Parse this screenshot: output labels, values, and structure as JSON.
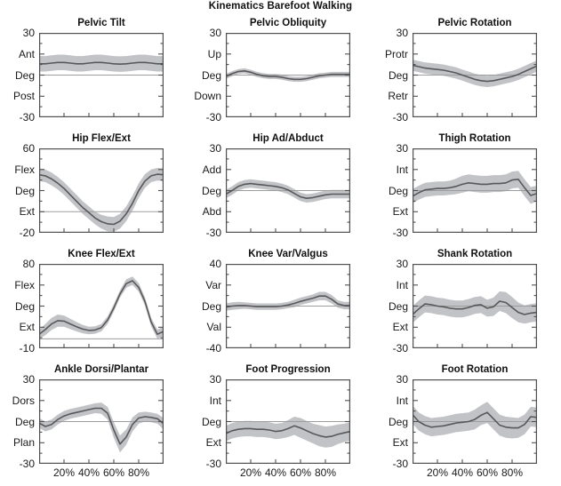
{
  "chart_data": {
    "type": "line",
    "suptitle": "Kinematics Barefoot Walking",
    "description_visible": "4x3 grid of gait kinematic curves, mean line with gray standard-deviation band, horizontal zero reference line in each plot",
    "legend": "none",
    "grid_lines": "off",
    "x": [
      0,
      5,
      10,
      15,
      20,
      25,
      30,
      35,
      40,
      45,
      50,
      55,
      60,
      65,
      70,
      75,
      80,
      85,
      90,
      95,
      100
    ],
    "x_axis": {
      "tick_values": [
        20,
        40,
        60,
        80
      ],
      "tick_labels": [
        "20%",
        "40%",
        "60%",
        "80%"
      ],
      "labels_on_bottom_row_only": true
    },
    "colors": {
      "band": "#c2c3c6",
      "mean_line": "#58585a",
      "zero_line": "#9d9d9d",
      "axis": "#4f5052",
      "text": "#111111",
      "background": "#ffffff"
    },
    "subplots": [
      {
        "title": "Pelvic Tilt",
        "ylim": [
          -30,
          30
        ],
        "yticks": [
          30,
          15,
          0,
          -15,
          -30
        ],
        "ytick_labels": [
          "30",
          "Ant",
          "Deg",
          "Post",
          "-30"
        ],
        "zero_reference_line": 0,
        "mean": [
          8,
          8,
          8.5,
          9,
          9,
          8.5,
          8,
          8,
          8.5,
          9,
          9,
          8.5,
          8,
          7.8,
          8,
          8.5,
          9,
          9,
          8.5,
          8,
          8
        ],
        "band": [
          5.5,
          5.5,
          5.5,
          5.5,
          5.5,
          5.5,
          5.5,
          5.5,
          5.5,
          5.5,
          5.5,
          5.5,
          5.5,
          5.5,
          5.5,
          5.5,
          5.5,
          5.5,
          5.5,
          5.5,
          5.5
        ]
      },
      {
        "title": "Pelvic Obliquity",
        "ylim": [
          -30,
          30
        ],
        "yticks": [
          30,
          15,
          0,
          -15,
          -30
        ],
        "ytick_labels": [
          "30",
          "Up",
          "Deg",
          "Down",
          "-30"
        ],
        "zero_reference_line": 0,
        "mean": [
          -1,
          1,
          2.5,
          3,
          2,
          0.5,
          -0.5,
          -1,
          -1,
          -1.5,
          -2.5,
          -3,
          -3,
          -2.5,
          -1.5,
          -0.5,
          0,
          0.5,
          0.5,
          0.5,
          0.5
        ],
        "band": [
          1.8,
          1.8,
          1.8,
          1.8,
          1.8,
          1.8,
          1.8,
          1.8,
          1.8,
          1.8,
          1.8,
          1.8,
          1.8,
          1.8,
          1.8,
          1.8,
          1.8,
          1.8,
          1.8,
          1.8,
          1.8
        ]
      },
      {
        "title": "Pelvic Rotation",
        "ylim": [
          -30,
          30
        ],
        "yticks": [
          30,
          15,
          0,
          -15,
          -30
        ],
        "ytick_labels": [
          "30",
          "Protr",
          "Deg",
          "Retr",
          "-30"
        ],
        "zero_reference_line": 0,
        "mean": [
          7,
          6,
          5,
          4.5,
          4,
          3.5,
          2.5,
          1.5,
          0,
          -1.5,
          -3,
          -4,
          -4.5,
          -4,
          -3,
          -2,
          -1,
          0.5,
          2.5,
          4.5,
          6.5
        ],
        "band": [
          4,
          4,
          4,
          4,
          4,
          4,
          4,
          4,
          4,
          4,
          4,
          4,
          4,
          4,
          4,
          4,
          4,
          4,
          4,
          4,
          4
        ]
      },
      {
        "title": "Hip Flex/Ext",
        "ylim": [
          -20,
          60
        ],
        "yticks": [
          60,
          40,
          20,
          0,
          -20
        ],
        "ytick_labels": [
          "60",
          "Flex",
          "Deg",
          "Ext",
          "-20"
        ],
        "zero_reference_line": 0,
        "mean": [
          35,
          34,
          31,
          27,
          22,
          16,
          10,
          4,
          -1,
          -6,
          -9.5,
          -11.5,
          -12,
          -9,
          -2,
          8,
          20,
          29,
          34,
          35.5,
          35
        ],
        "band": [
          6,
          6,
          6,
          6,
          6,
          6,
          6,
          6,
          6,
          6,
          6.5,
          7,
          7,
          7,
          7,
          7,
          7,
          6.5,
          6,
          6,
          6
        ]
      },
      {
        "title": "Hip Ad/Abduct",
        "ylim": [
          -30,
          30
        ],
        "yticks": [
          30,
          15,
          0,
          -15,
          -30
        ],
        "ytick_labels": [
          "30",
          "Add",
          "Deg",
          "Abd",
          "-30"
        ],
        "zero_reference_line": 0,
        "mean": [
          -2.5,
          0,
          3,
          4.5,
          5,
          4.5,
          4,
          3.5,
          3,
          2,
          0.5,
          -2,
          -4.5,
          -5.5,
          -5,
          -4,
          -3,
          -2.5,
          -2.5,
          -2.5,
          -2.5
        ],
        "band": [
          3,
          3,
          3,
          3,
          3,
          3,
          3,
          3,
          3,
          3,
          3,
          3,
          3,
          3,
          3,
          3,
          3,
          3,
          3,
          3,
          3
        ]
      },
      {
        "title": "Thigh Rotation",
        "ylim": [
          -30,
          30
        ],
        "yticks": [
          30,
          15,
          0,
          -15,
          -30
        ],
        "ytick_labels": [
          "30",
          "Int",
          "Deg",
          "Ext",
          "-30"
        ],
        "zero_reference_line": 0,
        "mean": [
          -4,
          -1.5,
          0.5,
          1,
          1.5,
          1.5,
          2,
          3,
          4.5,
          5.5,
          5,
          4.5,
          4.5,
          5,
          5,
          5.5,
          7.5,
          8,
          2,
          -3.5,
          -2
        ],
        "band": [
          5,
          5,
          5,
          5,
          5,
          5,
          5,
          5.5,
          6,
          6,
          6,
          6,
          6,
          6,
          6,
          6,
          6,
          6,
          6,
          6,
          5.5
        ]
      },
      {
        "title": "Knee Flex/Ext",
        "ylim": [
          -10,
          80
        ],
        "yticks": [
          80,
          57.5,
          35,
          12.5,
          -10
        ],
        "ytick_labels": [
          "80",
          "Flex",
          "Deg",
          "Ext",
          "-10"
        ],
        "zero_reference_line": 0,
        "mean": [
          5,
          10,
          16,
          19.5,
          19,
          16,
          13,
          10.5,
          9,
          9.5,
          12,
          20,
          33,
          48,
          59,
          62,
          55,
          40,
          18,
          5,
          8
        ],
        "band": [
          5,
          6,
          6.5,
          6.5,
          6,
          5.5,
          5,
          4.5,
          4,
          4,
          4,
          4,
          4,
          4,
          4.5,
          4.5,
          4.5,
          4.5,
          4.5,
          5,
          5
        ]
      },
      {
        "title": "Knee Var/Valgus",
        "ylim": [
          -40,
          40
        ],
        "yticks": [
          40,
          20,
          0,
          -20,
          -40
        ],
        "ytick_labels": [
          "40",
          "Var",
          "Deg",
          "Val",
          "-40"
        ],
        "zero_reference_line": 0,
        "mean": [
          -1,
          0,
          0.5,
          0.5,
          0,
          -0.5,
          -0.5,
          -0.5,
          -0.5,
          0,
          1,
          2.5,
          4.5,
          6,
          7.5,
          9.5,
          9.5,
          6.5,
          2,
          0.5,
          0.5
        ],
        "band": [
          3.5,
          3.5,
          3.5,
          3,
          3,
          3,
          3,
          3,
          3,
          3,
          3,
          3.5,
          3.5,
          3.5,
          3.5,
          4,
          4,
          4,
          3.5,
          3.5,
          3.5
        ]
      },
      {
        "title": "Shank Rotation",
        "ylim": [
          -30,
          30
        ],
        "yticks": [
          30,
          15,
          0,
          -15,
          -30
        ],
        "ytick_labels": [
          "30",
          "Int",
          "Deg",
          "Ext",
          "-30"
        ],
        "zero_reference_line": 0,
        "mean": [
          -6,
          -2,
          1.5,
          1,
          0,
          -0.5,
          -1.5,
          -2,
          -2,
          -1,
          0.5,
          1,
          -1.5,
          -0.5,
          3.5,
          2.5,
          -1,
          -4.5,
          -6,
          -5,
          -4.5
        ],
        "band": [
          6,
          6,
          6,
          6,
          6,
          6,
          6,
          6,
          6,
          6,
          6,
          6,
          6,
          6.5,
          7,
          7.5,
          7.5,
          7,
          6.5,
          6.5,
          6.5
        ]
      },
      {
        "title": "Ankle Dorsi/Plantar",
        "ylim": [
          -30,
          30
        ],
        "yticks": [
          30,
          15,
          0,
          -15,
          -30
        ],
        "ytick_labels": [
          "30",
          "Dors",
          "Deg",
          "Plan",
          "-30"
        ],
        "zero_reference_line": 0,
        "mean": [
          -1,
          -3.5,
          -2,
          1.5,
          4,
          5.5,
          6.5,
          7.5,
          8.5,
          9.5,
          9.5,
          6,
          -6,
          -16,
          -11,
          -2,
          2.5,
          3.5,
          3,
          2,
          -1.5
        ],
        "band": [
          3.5,
          3.5,
          3.5,
          3.5,
          3.5,
          3.5,
          3.5,
          3.5,
          3.5,
          3.5,
          4,
          4.5,
          5.5,
          6,
          5.5,
          5,
          4,
          3.5,
          3.5,
          3.5,
          4
        ]
      },
      {
        "title": "Foot Progression",
        "ylim": [
          -30,
          30
        ],
        "yticks": [
          30,
          15,
          0,
          -15,
          -30
        ],
        "ytick_labels": [
          "30",
          "Int",
          "Deg",
          "Ext",
          "-30"
        ],
        "zero_reference_line": 0,
        "mean": [
          -8.5,
          -6.5,
          -5.5,
          -5,
          -5,
          -5.5,
          -5.5,
          -6,
          -7,
          -6.5,
          -5,
          -3,
          -4.5,
          -6.5,
          -8.5,
          -10,
          -11,
          -10.5,
          -9,
          -8,
          -7
        ],
        "band": [
          5.5,
          5.5,
          5.5,
          5.5,
          5.5,
          5.5,
          5.5,
          5.5,
          5.5,
          5.5,
          6,
          6.5,
          7,
          7,
          7,
          7.5,
          7.5,
          7.5,
          7,
          6.5,
          6.5
        ]
      },
      {
        "title": "Foot Rotation",
        "ylim": [
          -30,
          30
        ],
        "yticks": [
          30,
          15,
          0,
          -15,
          -30
        ],
        "ytick_labels": [
          "30",
          "Int",
          "Deg",
          "Ext",
          "-30"
        ],
        "zero_reference_line": 0,
        "mean": [
          5,
          0,
          -2.5,
          -4,
          -3.5,
          -3,
          -2,
          -1,
          -0.5,
          0,
          1.5,
          4.5,
          6.5,
          2,
          -2.5,
          -4,
          -4.5,
          -4.5,
          -2,
          3.5,
          3
        ],
        "band": [
          6.5,
          6.5,
          6.5,
          6.5,
          6.5,
          6.5,
          6.5,
          6.5,
          6.5,
          6.5,
          7,
          7,
          7.5,
          7.5,
          7.5,
          7.5,
          7.5,
          7,
          7,
          7,
          7
        ]
      }
    ]
  }
}
